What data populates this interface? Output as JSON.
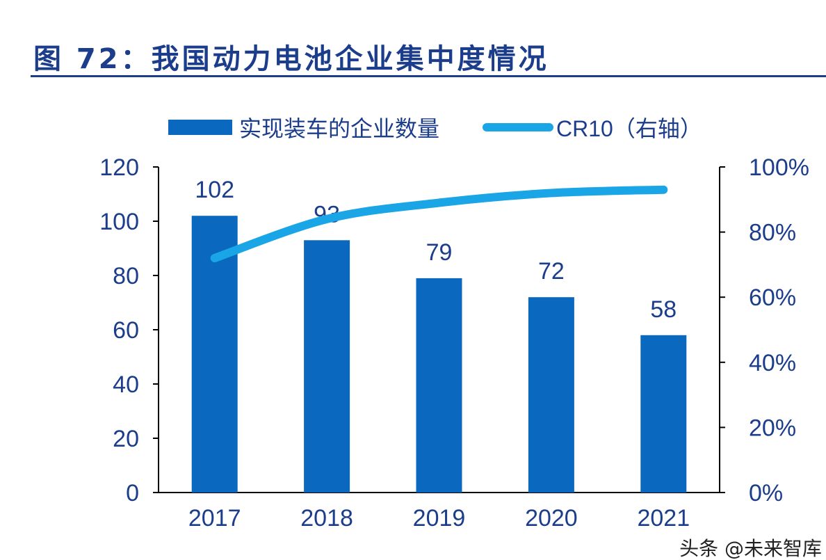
{
  "title": "图 72：我国动力电池企业集中度情况",
  "watermark": "头条 @未来智库",
  "colors": {
    "bar": "#0a68bf",
    "line": "#1aa6e6",
    "text": "#1c3d8c",
    "axis": "#000000"
  },
  "chart_data": {
    "type": "bar+line",
    "categories": [
      "2017",
      "2018",
      "2019",
      "2020",
      "2021"
    ],
    "series": [
      {
        "name": "实现装车的企业数量",
        "type": "bar",
        "axis": "left",
        "values": [
          102,
          93,
          79,
          72,
          58
        ]
      },
      {
        "name": "CR10（右轴）",
        "type": "line",
        "axis": "right",
        "values": [
          0.72,
          0.84,
          0.89,
          0.92,
          0.93
        ]
      }
    ],
    "ylim_left": [
      0,
      120
    ],
    "yticks_left": [
      "0",
      "20",
      "40",
      "60",
      "80",
      "100",
      "120"
    ],
    "ylim_right": [
      0,
      1
    ],
    "yticks_right": [
      "0%",
      "20%",
      "40%",
      "60%",
      "80%",
      "100%"
    ],
    "data_labels": [
      "102",
      "93",
      "79",
      "72",
      "58"
    ],
    "legend_placement": "top",
    "grid": false
  }
}
